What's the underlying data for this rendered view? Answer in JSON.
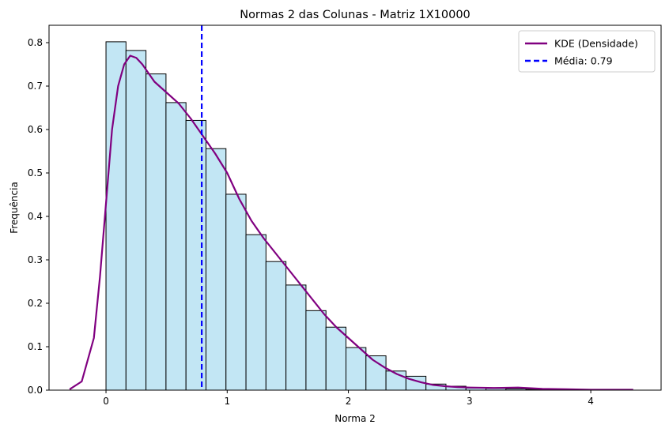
{
  "chart_data": {
    "type": "bar",
    "title": "Normas 2 das Colunas - Matriz 1X10000",
    "xlabel": "Norma 2",
    "ylabel": "Frequência",
    "xlim": [
      -0.47,
      4.58
    ],
    "ylim": [
      0,
      0.84
    ],
    "grid": false,
    "legend_position": "top-right",
    "x_ticks": [
      0,
      1,
      2,
      3,
      4
    ],
    "y_ticks": [
      0.0,
      0.1,
      0.2,
      0.3,
      0.4,
      0.5,
      0.6,
      0.7,
      0.8
    ],
    "bin_width": 0.165,
    "bin_start": 0.0,
    "histogram_values": [
      0.802,
      0.782,
      0.728,
      0.662,
      0.621,
      0.556,
      0.451,
      0.358,
      0.296,
      0.242,
      0.183,
      0.145,
      0.098,
      0.079,
      0.044,
      0.032,
      0.014,
      0.009,
      0.005,
      0.004,
      0.003,
      0.002
    ],
    "histogram_fill": "#c2e6f4",
    "histogram_edge": "#000000",
    "series": [
      {
        "name": "KDE (Densidade)",
        "kind": "line",
        "color": "#800080",
        "x": [
          -0.3,
          -0.2,
          -0.1,
          -0.05,
          0.0,
          0.05,
          0.1,
          0.15,
          0.2,
          0.25,
          0.3,
          0.4,
          0.5,
          0.6,
          0.7,
          0.8,
          0.9,
          1.0,
          1.1,
          1.2,
          1.3,
          1.4,
          1.5,
          1.6,
          1.7,
          1.8,
          1.9,
          2.0,
          2.1,
          2.2,
          2.3,
          2.4,
          2.5,
          2.6,
          2.7,
          2.8,
          2.9,
          3.0,
          3.2,
          3.4,
          3.6,
          3.8,
          4.0,
          4.2,
          4.35
        ],
        "y": [
          0.002,
          0.02,
          0.12,
          0.26,
          0.43,
          0.6,
          0.7,
          0.75,
          0.77,
          0.765,
          0.75,
          0.71,
          0.685,
          0.66,
          0.625,
          0.585,
          0.545,
          0.5,
          0.44,
          0.39,
          0.35,
          0.315,
          0.28,
          0.245,
          0.21,
          0.175,
          0.145,
          0.12,
          0.095,
          0.07,
          0.052,
          0.037,
          0.026,
          0.018,
          0.012,
          0.009,
          0.007,
          0.006,
          0.005,
          0.006,
          0.003,
          0.002,
          0.001,
          0.001,
          0.001
        ]
      },
      {
        "name": "Média: 0.79",
        "kind": "vline",
        "color": "#0000ff",
        "x_value": 0.79
      }
    ]
  }
}
